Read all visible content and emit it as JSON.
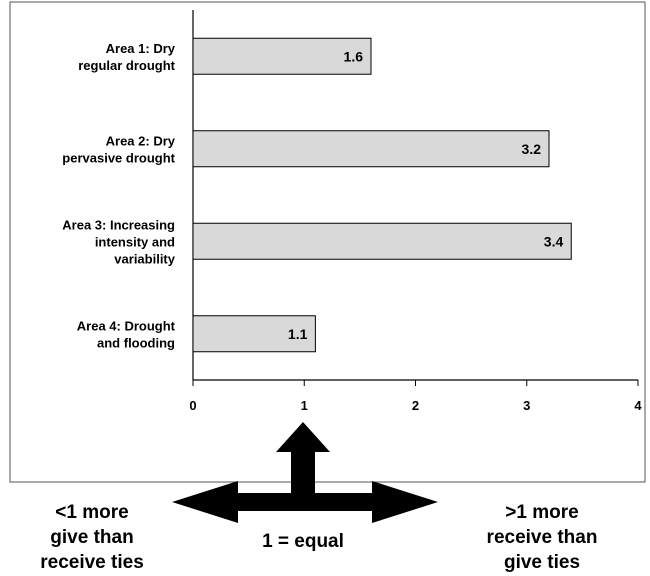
{
  "chart_data": {
    "type": "bar",
    "orientation": "horizontal",
    "categories": [
      [
        "Area 1: Dry",
        "regular drought"
      ],
      [
        "Area 2: Dry",
        "pervasive drought"
      ],
      [
        "Area 3: Increasing",
        "intensity and",
        "variability"
      ],
      [
        "Area 4: Drought",
        "and flooding"
      ]
    ],
    "values": [
      1.6,
      3.2,
      3.4,
      1.1
    ],
    "data_labels": [
      "1.6",
      "3.2",
      "3.4",
      "1.1"
    ],
    "xlim": [
      0,
      4
    ],
    "x_ticks": [
      "0",
      "1",
      "2",
      "3",
      "4"
    ],
    "grid": false,
    "bar_color": "#d9d9d9",
    "bar_edge_color": "#000000"
  },
  "annotations": {
    "left_lines": [
      "<1 more",
      "give than",
      "receive ties"
    ],
    "center": "1 = equal",
    "right_lines": [
      ">1 more",
      "receive than",
      "give ties"
    ]
  }
}
